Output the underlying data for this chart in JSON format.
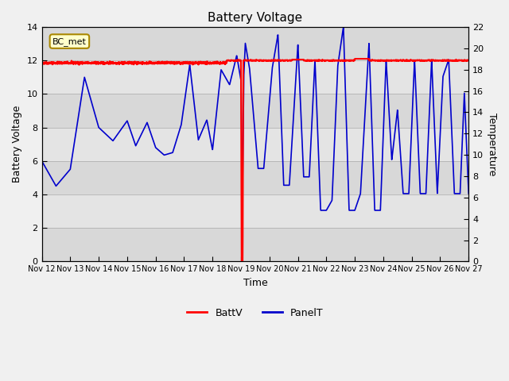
{
  "title": "Battery Voltage",
  "xlabel": "Time",
  "ylabel_left": "Battery Voltage",
  "ylabel_right": "Temperature",
  "bg_color": "#f0f0f0",
  "ylim_left": [
    0,
    14
  ],
  "ylim_right": [
    0,
    22
  ],
  "xtick_labels": [
    "Nov 12",
    "Nov 13",
    "Nov 14",
    "Nov 15",
    "Nov 16",
    "Nov 17",
    "Nov 18",
    "Nov 19",
    "Nov 20",
    "Nov 21",
    "Nov 22",
    "Nov 23",
    "Nov 24",
    "Nov 25",
    "Nov 26",
    "Nov 27"
  ],
  "annotation_text": "BC_met",
  "batt_color": "#ff0000",
  "panel_color": "#0000cc",
  "legend_batt": "BattV",
  "legend_panel": "PanelT",
  "yticks_left": [
    0,
    2,
    4,
    6,
    8,
    10,
    12,
    14
  ],
  "yticks_right": [
    0,
    2,
    4,
    6,
    8,
    10,
    12,
    14,
    16,
    18,
    20,
    22
  ],
  "band_colors": [
    "#d8d8d8",
    "#e4e4e4"
  ]
}
